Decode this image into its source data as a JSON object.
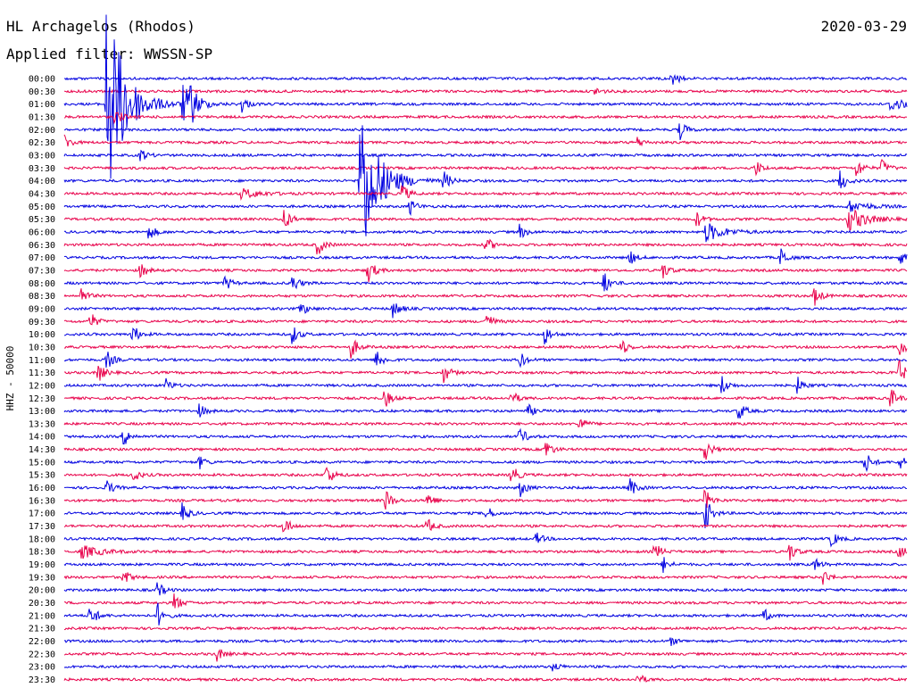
{
  "chart_data": {
    "type": "line",
    "title": "HL Archagelos (Rhodos)",
    "subtitle": "Applied filter: WWSSN-SP",
    "date": "2020-03-29",
    "ylabel": "HHZ - 50000",
    "row_labels": [
      "00:00",
      "00:30",
      "01:00",
      "01:30",
      "02:00",
      "02:30",
      "03:00",
      "03:30",
      "04:00",
      "04:30",
      "05:00",
      "05:30",
      "06:00",
      "06:30",
      "07:00",
      "07:30",
      "08:00",
      "08:30",
      "09:00",
      "09:30",
      "10:00",
      "10:30",
      "11:00",
      "11:30",
      "12:00",
      "12:30",
      "13:00",
      "13:30",
      "14:00",
      "14:30",
      "15:00",
      "15:30",
      "16:00",
      "16:30",
      "17:00",
      "17:30",
      "18:00",
      "18:30",
      "19:00",
      "19:30",
      "20:00",
      "20:30",
      "21:00",
      "21:30",
      "22:00",
      "22:30",
      "23:00",
      "23:30"
    ],
    "trace_colors": [
      "#0000e0",
      "#e8004a"
    ],
    "events": [
      {
        "row": 0,
        "t": 0.72,
        "amp": 12
      },
      {
        "row": 1,
        "t": 0.63,
        "amp": 6
      },
      {
        "row": 2,
        "t": 0.05,
        "amp": 130,
        "w": 3
      },
      {
        "row": 2,
        "t": 0.14,
        "amp": 22,
        "w": 2
      },
      {
        "row": 2,
        "t": 0.15,
        "amp": 18
      },
      {
        "row": 2,
        "t": 0.21,
        "amp": 10
      },
      {
        "row": 2,
        "t": 0.98,
        "amp": 8,
        "w": 3
      },
      {
        "row": 3,
        "t": 0.06,
        "amp": 12
      },
      {
        "row": 4,
        "t": 0.73,
        "amp": 12
      },
      {
        "row": 5,
        "t": 0.0,
        "amp": 10
      },
      {
        "row": 5,
        "t": 0.68,
        "amp": 6
      },
      {
        "row": 6,
        "t": 0.09,
        "amp": 8
      },
      {
        "row": 7,
        "t": 0.82,
        "amp": 10
      },
      {
        "row": 7,
        "t": 0.94,
        "amp": 12
      },
      {
        "row": 7,
        "t": 0.97,
        "amp": 10
      },
      {
        "row": 8,
        "t": 0.35,
        "amp": 100,
        "w": 3
      },
      {
        "row": 8,
        "t": 0.45,
        "amp": 12
      },
      {
        "row": 8,
        "t": 0.92,
        "amp": 15
      },
      {
        "row": 9,
        "t": 0.21,
        "amp": 6,
        "w": 3
      },
      {
        "row": 9,
        "t": 0.4,
        "amp": 14
      },
      {
        "row": 10,
        "t": 0.41,
        "amp": 10
      },
      {
        "row": 10,
        "t": 0.93,
        "amp": 7,
        "w": 3
      },
      {
        "row": 11,
        "t": 0.26,
        "amp": 16
      },
      {
        "row": 11,
        "t": 0.75,
        "amp": 10
      },
      {
        "row": 11,
        "t": 0.93,
        "amp": 14,
        "w": 3
      },
      {
        "row": 12,
        "t": 0.1,
        "amp": 10
      },
      {
        "row": 12,
        "t": 0.54,
        "amp": 9
      },
      {
        "row": 12,
        "t": 0.76,
        "amp": 12,
        "w": 3
      },
      {
        "row": 13,
        "t": 0.3,
        "amp": 14
      },
      {
        "row": 13,
        "t": 0.5,
        "amp": 10
      },
      {
        "row": 14,
        "t": 0.67,
        "amp": 10
      },
      {
        "row": 14,
        "t": 0.85,
        "amp": 12
      },
      {
        "row": 14,
        "t": 0.99,
        "amp": 10
      },
      {
        "row": 15,
        "t": 0.09,
        "amp": 10
      },
      {
        "row": 15,
        "t": 0.36,
        "amp": 16
      },
      {
        "row": 15,
        "t": 0.71,
        "amp": 10
      },
      {
        "row": 16,
        "t": 0.19,
        "amp": 10
      },
      {
        "row": 16,
        "t": 0.27,
        "amp": 12
      },
      {
        "row": 16,
        "t": 0.64,
        "amp": 14
      },
      {
        "row": 17,
        "t": 0.02,
        "amp": 10
      },
      {
        "row": 17,
        "t": 0.89,
        "amp": 12
      },
      {
        "row": 18,
        "t": 0.28,
        "amp": 10
      },
      {
        "row": 18,
        "t": 0.39,
        "amp": 12
      },
      {
        "row": 19,
        "t": 0.03,
        "amp": 12
      },
      {
        "row": 19,
        "t": 0.5,
        "amp": 12
      },
      {
        "row": 20,
        "t": 0.08,
        "amp": 14
      },
      {
        "row": 20,
        "t": 0.27,
        "amp": 12
      },
      {
        "row": 20,
        "t": 0.57,
        "amp": 12
      },
      {
        "row": 21,
        "t": 0.34,
        "amp": 14
      },
      {
        "row": 21,
        "t": 0.66,
        "amp": 12
      },
      {
        "row": 21,
        "t": 0.99,
        "amp": 16
      },
      {
        "row": 22,
        "t": 0.05,
        "amp": 12
      },
      {
        "row": 22,
        "t": 0.37,
        "amp": 14
      },
      {
        "row": 22,
        "t": 0.54,
        "amp": 10
      },
      {
        "row": 23,
        "t": 0.04,
        "amp": 12
      },
      {
        "row": 23,
        "t": 0.45,
        "amp": 12
      },
      {
        "row": 23,
        "t": 0.99,
        "amp": 16
      },
      {
        "row": 24,
        "t": 0.12,
        "amp": 8
      },
      {
        "row": 24,
        "t": 0.78,
        "amp": 12
      },
      {
        "row": 24,
        "t": 0.87,
        "amp": 10
      },
      {
        "row": 25,
        "t": 0.38,
        "amp": 12
      },
      {
        "row": 25,
        "t": 0.53,
        "amp": 10
      },
      {
        "row": 25,
        "t": 0.98,
        "amp": 14
      },
      {
        "row": 26,
        "t": 0.16,
        "amp": 8
      },
      {
        "row": 26,
        "t": 0.55,
        "amp": 8
      },
      {
        "row": 26,
        "t": 0.8,
        "amp": 12
      },
      {
        "row": 27,
        "t": 0.61,
        "amp": 10
      },
      {
        "row": 28,
        "t": 0.07,
        "amp": 12
      },
      {
        "row": 28,
        "t": 0.54,
        "amp": 12
      },
      {
        "row": 29,
        "t": 0.57,
        "amp": 14
      },
      {
        "row": 29,
        "t": 0.76,
        "amp": 14
      },
      {
        "row": 30,
        "t": 0.16,
        "amp": 8
      },
      {
        "row": 30,
        "t": 0.95,
        "amp": 14
      },
      {
        "row": 30,
        "t": 0.99,
        "amp": 10
      },
      {
        "row": 31,
        "t": 0.08,
        "amp": 10
      },
      {
        "row": 31,
        "t": 0.31,
        "amp": 16
      },
      {
        "row": 31,
        "t": 0.53,
        "amp": 14
      },
      {
        "row": 32,
        "t": 0.05,
        "amp": 10
      },
      {
        "row": 32,
        "t": 0.54,
        "amp": 12
      },
      {
        "row": 32,
        "t": 0.67,
        "amp": 14
      },
      {
        "row": 33,
        "t": 0.38,
        "amp": 16
      },
      {
        "row": 33,
        "t": 0.43,
        "amp": 12
      },
      {
        "row": 33,
        "t": 0.76,
        "amp": 14
      },
      {
        "row": 34,
        "t": 0.14,
        "amp": 12
      },
      {
        "row": 34,
        "t": 0.5,
        "amp": 10
      },
      {
        "row": 34,
        "t": 0.76,
        "amp": 22
      },
      {
        "row": 35,
        "t": 0.26,
        "amp": 12
      },
      {
        "row": 35,
        "t": 0.43,
        "amp": 10
      },
      {
        "row": 36,
        "t": 0.56,
        "amp": 8
      },
      {
        "row": 36,
        "t": 0.91,
        "amp": 10
      },
      {
        "row": 37,
        "t": 0.02,
        "amp": 8,
        "w": 3
      },
      {
        "row": 37,
        "t": 0.7,
        "amp": 12
      },
      {
        "row": 37,
        "t": 0.86,
        "amp": 12
      },
      {
        "row": 37,
        "t": 0.99,
        "amp": 10
      },
      {
        "row": 38,
        "t": 0.71,
        "amp": 10
      },
      {
        "row": 38,
        "t": 0.89,
        "amp": 8
      },
      {
        "row": 39,
        "t": 0.07,
        "amp": 10
      },
      {
        "row": 39,
        "t": 0.9,
        "amp": 10
      },
      {
        "row": 40,
        "t": 0.11,
        "amp": 10
      },
      {
        "row": 41,
        "t": 0.13,
        "amp": 12
      },
      {
        "row": 42,
        "t": 0.03,
        "amp": 16
      },
      {
        "row": 42,
        "t": 0.11,
        "amp": 16
      },
      {
        "row": 42,
        "t": 0.83,
        "amp": 8
      },
      {
        "row": 44,
        "t": 0.72,
        "amp": 5
      },
      {
        "row": 45,
        "t": 0.18,
        "amp": 10
      },
      {
        "row": 46,
        "t": 0.58,
        "amp": 6
      },
      {
        "row": 47,
        "t": 0.68,
        "amp": 8
      }
    ]
  }
}
